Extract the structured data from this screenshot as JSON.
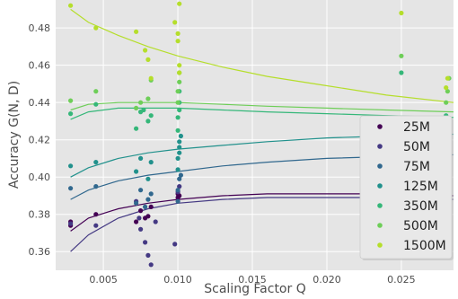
{
  "chart_data": {
    "type": "scatter",
    "title": "",
    "xlabel": "Scaling Factor Q",
    "ylabel": "Accuracy G(N, D)",
    "xlim": [
      0.0018,
      0.0285
    ],
    "ylim": [
      0.35,
      0.495
    ],
    "xticks": [
      0.005,
      0.01,
      0.015,
      0.02,
      0.025
    ],
    "xtick_labels": [
      "0.005",
      "0.010",
      "0.015",
      "0.020",
      "0.025"
    ],
    "yticks": [
      0.36,
      0.38,
      0.4,
      0.42,
      0.44,
      0.46,
      0.48
    ],
    "ytick_labels": [
      "0.36",
      "0.38",
      "0.40",
      "0.42",
      "0.44",
      "0.46",
      "0.48"
    ],
    "grid": true,
    "legend_position": "bottom-right",
    "series": [
      {
        "name": "25M",
        "color": "#440154",
        "points": [
          [
            0.0028,
            0.374
          ],
          [
            0.0028,
            0.376
          ],
          [
            0.0045,
            0.38
          ],
          [
            0.0072,
            0.376
          ],
          [
            0.0075,
            0.382
          ],
          [
            0.0078,
            0.378
          ],
          [
            0.008,
            0.379
          ],
          [
            0.0082,
            0.384
          ],
          [
            0.01,
            0.389
          ],
          [
            0.01,
            0.391
          ],
          [
            0.0101,
            0.39
          ]
        ],
        "fit": [
          [
            0.0028,
            0.371
          ],
          [
            0.004,
            0.378
          ],
          [
            0.006,
            0.383
          ],
          [
            0.008,
            0.386
          ],
          [
            0.01,
            0.388
          ],
          [
            0.013,
            0.39
          ],
          [
            0.016,
            0.391
          ],
          [
            0.02,
            0.391
          ],
          [
            0.024,
            0.391
          ],
          [
            0.0285,
            0.39
          ]
        ]
      },
      {
        "name": "50M",
        "color": "#443983",
        "points": [
          [
            0.0028,
            0.375
          ],
          [
            0.0045,
            0.374
          ],
          [
            0.0072,
            0.387
          ],
          [
            0.0074,
            0.378
          ],
          [
            0.0075,
            0.372
          ],
          [
            0.0078,
            0.365
          ],
          [
            0.008,
            0.358
          ],
          [
            0.0082,
            0.353
          ],
          [
            0.0085,
            0.376
          ],
          [
            0.0098,
            0.364
          ],
          [
            0.01,
            0.392
          ],
          [
            0.0101,
            0.395
          ]
        ],
        "fit": [
          [
            0.0028,
            0.36
          ],
          [
            0.004,
            0.369
          ],
          [
            0.006,
            0.378
          ],
          [
            0.008,
            0.383
          ],
          [
            0.01,
            0.386
          ],
          [
            0.013,
            0.388
          ],
          [
            0.016,
            0.389
          ],
          [
            0.02,
            0.389
          ],
          [
            0.024,
            0.389
          ],
          [
            0.0285,
            0.388
          ]
        ]
      },
      {
        "name": "75M",
        "color": "#31688e",
        "points": [
          [
            0.0028,
            0.394
          ],
          [
            0.0045,
            0.395
          ],
          [
            0.0072,
            0.386
          ],
          [
            0.0075,
            0.393
          ],
          [
            0.0078,
            0.384
          ],
          [
            0.008,
            0.388
          ],
          [
            0.0082,
            0.391
          ],
          [
            0.01,
            0.387
          ],
          [
            0.01,
            0.393
          ],
          [
            0.0101,
            0.399
          ],
          [
            0.0102,
            0.401
          ],
          [
            0.028,
            0.42
          ]
        ],
        "fit": [
          [
            0.0028,
            0.388
          ],
          [
            0.004,
            0.393
          ],
          [
            0.006,
            0.398
          ],
          [
            0.008,
            0.401
          ],
          [
            0.01,
            0.403
          ],
          [
            0.013,
            0.406
          ],
          [
            0.016,
            0.408
          ],
          [
            0.02,
            0.41
          ],
          [
            0.024,
            0.411
          ],
          [
            0.0285,
            0.412
          ]
        ]
      },
      {
        "name": "125M",
        "color": "#21918c",
        "points": [
          [
            0.0028,
            0.406
          ],
          [
            0.0045,
            0.408
          ],
          [
            0.0072,
            0.403
          ],
          [
            0.0075,
            0.41
          ],
          [
            0.008,
            0.399
          ],
          [
            0.0082,
            0.408
          ],
          [
            0.01,
            0.404
          ],
          [
            0.01,
            0.41
          ],
          [
            0.0101,
            0.413
          ],
          [
            0.0101,
            0.416
          ],
          [
            0.0101,
            0.419
          ],
          [
            0.0102,
            0.422
          ],
          [
            0.028,
            0.424
          ],
          [
            0.0281,
            0.427
          ]
        ],
        "fit": [
          [
            0.0028,
            0.4
          ],
          [
            0.004,
            0.405
          ],
          [
            0.006,
            0.41
          ],
          [
            0.008,
            0.413
          ],
          [
            0.01,
            0.415
          ],
          [
            0.013,
            0.417
          ],
          [
            0.016,
            0.419
          ],
          [
            0.02,
            0.421
          ],
          [
            0.024,
            0.422
          ],
          [
            0.0285,
            0.423
          ]
        ]
      },
      {
        "name": "350M",
        "color": "#35b779",
        "points": [
          [
            0.0028,
            0.434
          ],
          [
            0.0045,
            0.439
          ],
          [
            0.0072,
            0.426
          ],
          [
            0.0075,
            0.435
          ],
          [
            0.0077,
            0.436
          ],
          [
            0.008,
            0.43
          ],
          [
            0.0082,
            0.433
          ],
          [
            0.01,
            0.425
          ],
          [
            0.01,
            0.432
          ],
          [
            0.0101,
            0.436
          ],
          [
            0.0101,
            0.44
          ],
          [
            0.0101,
            0.446
          ],
          [
            0.025,
            0.456
          ],
          [
            0.028,
            0.433
          ]
        ],
        "fit": [
          [
            0.0028,
            0.431
          ],
          [
            0.004,
            0.435
          ],
          [
            0.006,
            0.437
          ],
          [
            0.008,
            0.437
          ],
          [
            0.01,
            0.437
          ],
          [
            0.013,
            0.436
          ],
          [
            0.016,
            0.435
          ],
          [
            0.02,
            0.434
          ],
          [
            0.024,
            0.433
          ],
          [
            0.0285,
            0.432
          ]
        ]
      },
      {
        "name": "500M",
        "color": "#6ece58",
        "points": [
          [
            0.0028,
            0.441
          ],
          [
            0.0045,
            0.446
          ],
          [
            0.0072,
            0.437
          ],
          [
            0.0075,
            0.44
          ],
          [
            0.008,
            0.442
          ],
          [
            0.0082,
            0.452
          ],
          [
            0.01,
            0.44
          ],
          [
            0.01,
            0.446
          ],
          [
            0.0101,
            0.451
          ],
          [
            0.0101,
            0.456
          ],
          [
            0.025,
            0.465
          ],
          [
            0.028,
            0.44
          ],
          [
            0.0281,
            0.446
          ],
          [
            0.0282,
            0.453
          ]
        ],
        "fit": [
          [
            0.0028,
            0.436
          ],
          [
            0.004,
            0.439
          ],
          [
            0.006,
            0.44
          ],
          [
            0.008,
            0.44
          ],
          [
            0.01,
            0.44
          ],
          [
            0.013,
            0.439
          ],
          [
            0.016,
            0.438
          ],
          [
            0.02,
            0.437
          ],
          [
            0.024,
            0.436
          ],
          [
            0.0285,
            0.435
          ]
        ]
      },
      {
        "name": "1500M",
        "color": "#b5de2b",
        "points": [
          [
            0.0028,
            0.492
          ],
          [
            0.0045,
            0.48
          ],
          [
            0.0072,
            0.478
          ],
          [
            0.0078,
            0.468
          ],
          [
            0.008,
            0.463
          ],
          [
            0.0082,
            0.453
          ],
          [
            0.0098,
            0.483
          ],
          [
            0.01,
            0.473
          ],
          [
            0.01,
            0.477
          ],
          [
            0.0101,
            0.493
          ],
          [
            0.0101,
            0.456
          ],
          [
            0.0101,
            0.46
          ],
          [
            0.025,
            0.488
          ],
          [
            0.028,
            0.448
          ],
          [
            0.0281,
            0.453
          ]
        ],
        "fit": [
          [
            0.0028,
            0.49
          ],
          [
            0.004,
            0.483
          ],
          [
            0.006,
            0.476
          ],
          [
            0.008,
            0.47
          ],
          [
            0.01,
            0.465
          ],
          [
            0.013,
            0.459
          ],
          [
            0.016,
            0.454
          ],
          [
            0.02,
            0.449
          ],
          [
            0.024,
            0.444
          ],
          [
            0.0285,
            0.44
          ]
        ]
      }
    ]
  }
}
